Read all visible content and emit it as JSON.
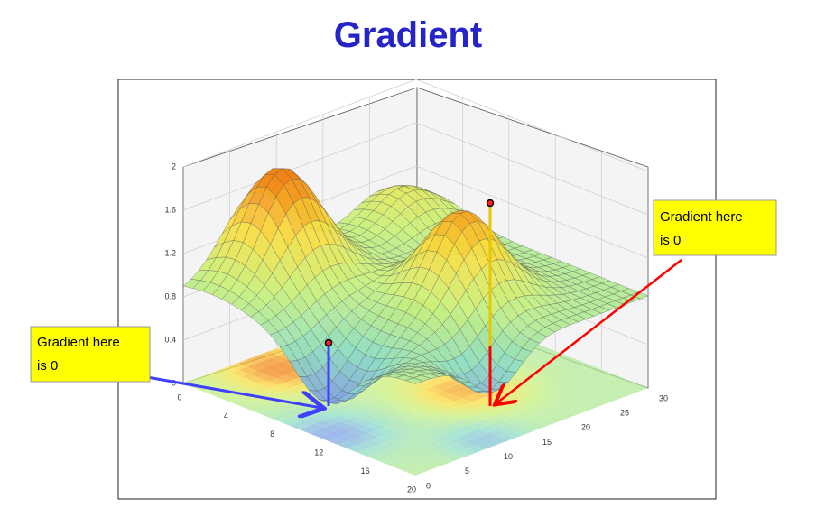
{
  "title": "Gradient",
  "figure": {
    "z_ticks": [
      2,
      1.6,
      1.2,
      0.8,
      0.4,
      0
    ],
    "x_ticks": [
      0,
      4,
      8,
      12,
      16,
      20
    ],
    "y_ticks": [
      0,
      5,
      10,
      15,
      20,
      25,
      30
    ]
  },
  "callouts": [
    {
      "lines": [
        "Gradient here",
        "is 0"
      ]
    },
    {
      "lines": [
        "Gradient here",
        "is 0"
      ]
    }
  ]
}
